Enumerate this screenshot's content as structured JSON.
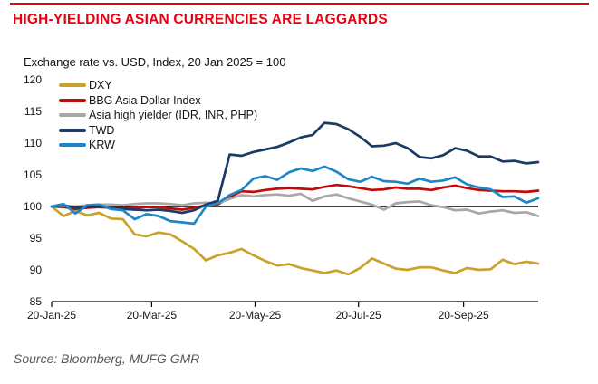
{
  "header": {
    "title": "HIGH-YIELDING ASIAN CURRENCIES ARE LAGGARDS",
    "accent_color": "#e60012"
  },
  "source": {
    "text": "Source: Bloomberg, MUFG GMR"
  },
  "chart_data": {
    "type": "line",
    "title": "Exchange rate vs. USD, Index, 20 Jan 2025 = 100",
    "xlabel": "",
    "ylabel": "",
    "ylim": [
      85,
      120
    ],
    "baseline": 100,
    "grid": false,
    "legend_position": "top-left",
    "x": [
      "20-Jan-25",
      "27-Jan-25",
      "03-Feb-25",
      "10-Feb-25",
      "17-Feb-25",
      "24-Feb-25",
      "03-Mar-25",
      "10-Mar-25",
      "17-Mar-25",
      "24-Mar-25",
      "31-Mar-25",
      "07-Apr-25",
      "14-Apr-25",
      "21-Apr-25",
      "28-Apr-25",
      "05-May-25",
      "12-May-25",
      "19-May-25",
      "26-May-25",
      "02-Jun-25",
      "09-Jun-25",
      "16-Jun-25",
      "23-Jun-25",
      "30-Jun-25",
      "07-Jul-25",
      "14-Jul-25",
      "21-Jul-25",
      "28-Jul-25",
      "04-Aug-25",
      "11-Aug-25",
      "18-Aug-25",
      "25-Aug-25",
      "01-Sep-25",
      "08-Sep-25",
      "15-Sep-25",
      "22-Sep-25",
      "29-Sep-25",
      "06-Oct-25",
      "13-Oct-25",
      "20-Oct-25",
      "27-Oct-25",
      "03-Nov-25"
    ],
    "x_ticks": [
      "20-Jan-25",
      "20-Mar-25",
      "20-May-25",
      "20-Jul-25",
      "20-Sep-25"
    ],
    "x_tick_pos": [
      0,
      8.43,
      17.14,
      25.86,
      34.71
    ],
    "y_ticks": [
      120,
      115,
      110,
      105,
      100,
      95,
      90,
      85
    ],
    "series": [
      {
        "name": "DXY",
        "color": "#c9a22c",
        "values": [
          100,
          98.5,
          99.3,
          98.6,
          99.0,
          98.1,
          98.0,
          95.6,
          95.3,
          95.9,
          95.6,
          94.5,
          93.3,
          91.5,
          92.3,
          92.7,
          93.3,
          92.3,
          91.4,
          90.7,
          90.9,
          90.3,
          89.9,
          89.5,
          89.9,
          89.3,
          90.3,
          91.8,
          91.0,
          90.2,
          90.0,
          90.4,
          90.4,
          89.9,
          89.5,
          90.3,
          90.0,
          90.1,
          91.6,
          90.9,
          91.3,
          91.0
        ]
      },
      {
        "name": "BBG Asia Dollar Index",
        "color": "#be0b0b",
        "values": [
          100,
          99.9,
          99.6,
          99.8,
          99.9,
          99.8,
          99.7,
          99.8,
          99.9,
          99.9,
          99.7,
          99.5,
          99.8,
          100.2,
          100.3,
          101.5,
          102.4,
          102.3,
          102.6,
          102.8,
          102.9,
          102.8,
          102.7,
          103.1,
          103.4,
          103.2,
          102.9,
          102.6,
          102.7,
          103.0,
          102.8,
          102.8,
          102.6,
          103.0,
          103.3,
          102.9,
          102.6,
          102.5,
          102.4,
          102.4,
          102.3,
          102.5
        ]
      },
      {
        "name": "Asia high yielder (IDR, INR, PHP)",
        "color": "#a8a8a8",
        "values": [
          100,
          100.1,
          100.0,
          100.2,
          100.3,
          100.3,
          100.2,
          100.4,
          100.5,
          100.5,
          100.4,
          100.2,
          100.5,
          100.6,
          100.5,
          101.2,
          101.8,
          101.6,
          101.8,
          101.9,
          101.7,
          102.0,
          100.9,
          101.6,
          101.9,
          101.3,
          100.8,
          100.3,
          99.5,
          100.5,
          100.7,
          100.8,
          100.2,
          99.9,
          99.4,
          99.5,
          98.9,
          99.2,
          99.4,
          99.0,
          99.1,
          98.5
        ]
      },
      {
        "name": "TWD",
        "color": "#1b3a64",
        "values": [
          100,
          100.2,
          99.8,
          99.9,
          100.0,
          99.8,
          99.6,
          99.5,
          99.4,
          99.5,
          99.3,
          99.0,
          99.4,
          100.3,
          100.9,
          108.2,
          108.0,
          108.6,
          109.0,
          109.4,
          110.1,
          110.9,
          111.3,
          113.2,
          113.0,
          112.2,
          111.0,
          109.5,
          109.6,
          110.0,
          109.2,
          107.8,
          107.6,
          108.1,
          109.2,
          108.8,
          107.9,
          107.9,
          107.1,
          107.2,
          106.8,
          107.0
        ]
      },
      {
        "name": "KRW",
        "color": "#1e86c8",
        "values": [
          100,
          100.4,
          98.9,
          100.2,
          100.3,
          99.6,
          99.4,
          98.0,
          98.8,
          98.5,
          97.7,
          97.5,
          97.3,
          100.0,
          100.5,
          101.8,
          102.6,
          104.4,
          104.8,
          104.2,
          105.4,
          106.0,
          105.6,
          106.3,
          105.5,
          104.3,
          103.9,
          104.7,
          104.0,
          103.9,
          103.6,
          104.4,
          103.9,
          104.1,
          104.6,
          103.5,
          103.0,
          102.7,
          101.5,
          101.6,
          100.6,
          101.3
        ]
      }
    ]
  }
}
